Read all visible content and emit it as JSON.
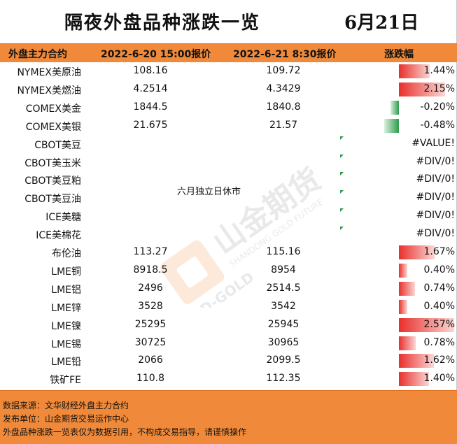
{
  "title": "隔夜外盘品种涨跌一览",
  "date": "6月21日",
  "header": {
    "col_name": "外盘主力合约",
    "col_prev": "2022-6-20 15:00报价",
    "col_curr": "2022-6-21 8:30报价",
    "col_change": "涨跌幅"
  },
  "rows": [
    {
      "name": "NYMEX美原油",
      "prev": "108.16",
      "curr": "109.72",
      "change": "1.44%",
      "pct": 1.44
    },
    {
      "name": "NYMEX美燃油",
      "prev": "4.2514",
      "curr": "4.3429",
      "change": "2.15%",
      "pct": 2.15
    },
    {
      "name": "COMEX美金",
      "prev": "1844.5",
      "curr": "1840.8",
      "change": "-0.20%",
      "pct": -0.2
    },
    {
      "name": "COMEX美银",
      "prev": "21.675",
      "curr": "21.57",
      "change": "-0.48%",
      "pct": -0.48
    },
    {
      "name": "CBOT美豆",
      "prev": "",
      "curr": "",
      "change": "#VALUE!",
      "pct": null
    },
    {
      "name": "CBOT美玉米",
      "prev": "",
      "curr": "",
      "change": "#DIV/0!",
      "pct": null
    },
    {
      "name": "CBOT美豆粕",
      "prev": "",
      "curr": "",
      "change": "#DIV/0!",
      "pct": null
    },
    {
      "name": "CBOT美豆油",
      "prev": "",
      "curr": "",
      "change": "#DIV/0!",
      "pct": null
    },
    {
      "name": "ICE美糖",
      "prev": "",
      "curr": "",
      "change": "#DIV/0!",
      "pct": null
    },
    {
      "name": "ICE美棉花",
      "prev": "",
      "curr": "",
      "change": "#DIV/0!",
      "pct": null
    },
    {
      "name": "布伦油",
      "prev": "113.27",
      "curr": "115.16",
      "change": "1.67%",
      "pct": 1.67
    },
    {
      "name": "LME铜",
      "prev": "8918.5",
      "curr": "8954",
      "change": "0.40%",
      "pct": 0.4
    },
    {
      "name": "LME铝",
      "prev": "2496",
      "curr": "2514.5",
      "change": "0.74%",
      "pct": 0.74
    },
    {
      "name": "LME锌",
      "prev": "3528",
      "curr": "3542",
      "change": "0.40%",
      "pct": 0.4
    },
    {
      "name": "LME镍",
      "prev": "25295",
      "curr": "25945",
      "change": "2.57%",
      "pct": 2.57
    },
    {
      "name": "LME锡",
      "prev": "30725",
      "curr": "30965",
      "change": "0.78%",
      "pct": 0.78
    },
    {
      "name": "LME铅",
      "prev": "2066",
      "curr": "2099.5",
      "change": "1.62%",
      "pct": 1.62
    },
    {
      "name": "铁矿FE",
      "prev": "110.8",
      "curr": "112.35",
      "change": "1.40%",
      "pct": 1.4
    }
  ],
  "holiday_note": "六月独立日休市",
  "watermark": {
    "brand": "山金期货",
    "english": "SHANDONG GOLD FUTURES",
    "short": "SD-GOLD"
  },
  "footer": {
    "source": "数据来源：文华财经外盘主力合约",
    "publisher": "发布单位：山金期货交易运作中心",
    "disclaimer": "外盘品种涨跌一览表仅为数据引用，不构成交易指导，请谨慎操作"
  },
  "colors": {
    "up": "#e8302c",
    "down": "#2e9b4d",
    "accent": "#f08a3a"
  }
}
